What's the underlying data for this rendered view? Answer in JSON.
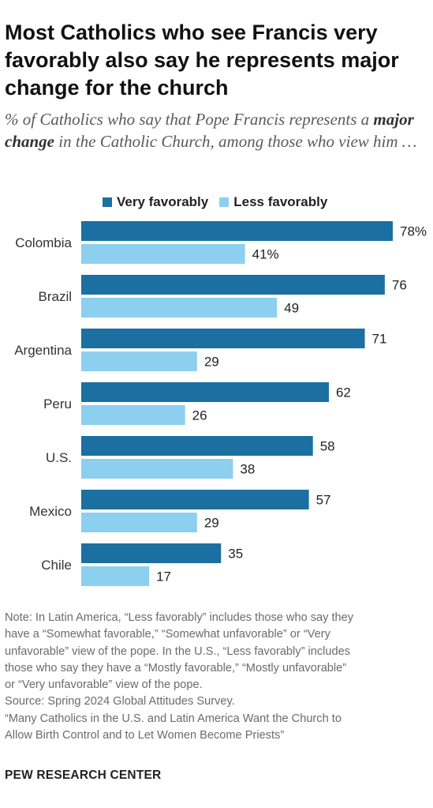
{
  "title": "Most Catholics who see Francis very favorably also say he represents major change for the church",
  "subtitle": {
    "before": "% of Catholics who say that Pope Francis represents a ",
    "emphasis": "major change",
    "after": " in the Catholic Church, among those who view him …"
  },
  "notes": [
    "Note: In Latin America, “Less favorably” includes those who say they",
    "have a “Somewhat favorable,” “Somewhat unfavorable” or “Very",
    "unfavorable” view of the pope. In the U.S., “Less favorably” includes",
    "those who say they have a “Mostly favorable,” “Mostly unfavorable”",
    "or “Very unfavorable” view of the pope.",
    "Source: Spring 2024 Global Attitudes Survey.",
    "“Many Catholics in the U.S. and Latin America Want the Church to",
    "Allow Birth Control and to Let Women Become Priests”"
  ],
  "brand": "PEW RESEARCH CENTER",
  "colors": {
    "very": "#1b6fa1",
    "less": "#8dcfee"
  },
  "chart_data": {
    "type": "bar",
    "orientation": "horizontal",
    "categories": [
      "Colombia",
      "Brazil",
      "Argentina",
      "Peru",
      "U.S.",
      "Mexico",
      "Chile"
    ],
    "series": [
      {
        "name": "Very favorably",
        "values": [
          78,
          76,
          71,
          62,
          58,
          57,
          35
        ],
        "color": "#1b6fa1"
      },
      {
        "name": "Less favorably",
        "values": [
          41,
          49,
          29,
          26,
          38,
          29,
          17
        ],
        "color": "#8dcfee"
      }
    ],
    "first_label_suffix": "%",
    "xlim": [
      0,
      78
    ],
    "grid": false,
    "legend": "top"
  }
}
